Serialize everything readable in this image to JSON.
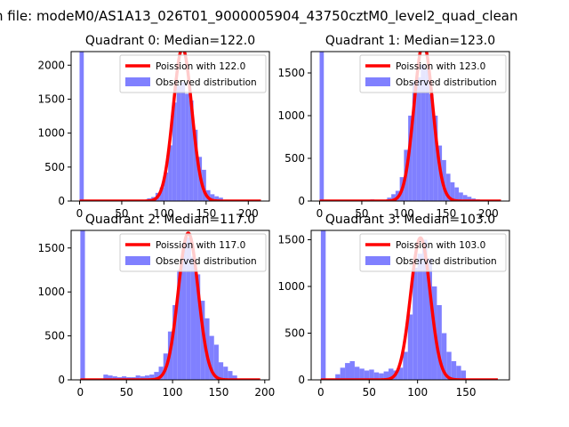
{
  "figure": {
    "suptitle": "n file: modeM0/AS1A13_026T01_9000005904_43750cztM0_level2_quad_clean"
  },
  "colors": {
    "poisson": "#ff0000",
    "observed": "#8080ff",
    "axes": "#000000"
  },
  "chart_data": [
    {
      "type": "bar",
      "title": "Quadrant 0: Median=122.0",
      "median": 122.0,
      "xlim": [
        -10,
        225
      ],
      "ylim": [
        0,
        2200
      ],
      "xticks": [
        0,
        50,
        100,
        150,
        200
      ],
      "yticks": [
        0,
        500,
        1000,
        1500,
        2000
      ],
      "grid": false,
      "legend_position": "top-right",
      "series": [
        {
          "name": "Poission with 122.0",
          "type": "line",
          "mean": 122.0,
          "scale": 2250,
          "x_range": [
            0,
            215
          ]
        },
        {
          "name": "Observed distribution",
          "type": "histogram",
          "bin_width": 5,
          "bins": [
            0,
            75,
            80,
            85,
            90,
            95,
            100,
            105,
            110,
            115,
            120,
            125,
            130,
            135,
            140,
            145,
            150,
            155,
            160,
            165,
            170
          ],
          "counts": [
            2200,
            20,
            40,
            60,
            120,
            200,
            420,
            820,
            1450,
            1700,
            1750,
            1580,
            1480,
            1050,
            650,
            460,
            160,
            100,
            70,
            50,
            20
          ]
        }
      ]
    },
    {
      "type": "bar",
      "title": "Quadrant 1: Median=123.0",
      "median": 123.0,
      "xlim": [
        -10,
        225
      ],
      "ylim": [
        0,
        1750
      ],
      "xticks": [
        0,
        50,
        100,
        150,
        200
      ],
      "yticks": [
        0,
        500,
        1000,
        1500
      ],
      "grid": false,
      "legend_position": "top-right",
      "series": [
        {
          "name": "Poission with 123.0",
          "type": "line",
          "mean": 123.0,
          "scale": 1850,
          "x_range": [
            0,
            215
          ]
        },
        {
          "name": "Observed distribution",
          "type": "histogram",
          "bin_width": 5,
          "bins": [
            0,
            60,
            80,
            85,
            90,
            95,
            100,
            105,
            110,
            115,
            120,
            125,
            130,
            135,
            140,
            145,
            150,
            155,
            160,
            165,
            170,
            175,
            180,
            185
          ],
          "counts": [
            1750,
            20,
            40,
            80,
            120,
            280,
            600,
            1000,
            1400,
            1450,
            1600,
            1550,
            1250,
            1000,
            650,
            480,
            320,
            220,
            160,
            100,
            70,
            50,
            30,
            20
          ]
        }
      ]
    },
    {
      "type": "bar",
      "title": "Quadrant 2: Median=117.0",
      "median": 117.0,
      "xlim": [
        -10,
        205
      ],
      "ylim": [
        0,
        1700
      ],
      "xticks": [
        0,
        50,
        100,
        150,
        200
      ],
      "yticks": [
        0,
        500,
        1000,
        1500
      ],
      "grid": false,
      "legend_position": "top-right",
      "series": [
        {
          "name": "Poission with 117.0",
          "type": "line",
          "mean": 117.0,
          "scale": 1670,
          "x_range": [
            0,
            195
          ]
        },
        {
          "name": "Observed distribution",
          "type": "histogram",
          "bin_width": 5,
          "bins": [
            0,
            20,
            25,
            30,
            35,
            40,
            45,
            50,
            55,
            60,
            65,
            70,
            75,
            80,
            85,
            90,
            95,
            100,
            105,
            110,
            115,
            120,
            125,
            130,
            135,
            140,
            145,
            150,
            155,
            160,
            165
          ],
          "counts": [
            1700,
            10,
            60,
            50,
            40,
            30,
            40,
            30,
            30,
            50,
            40,
            50,
            60,
            90,
            150,
            300,
            550,
            850,
            1250,
            1550,
            1620,
            1400,
            1200,
            900,
            700,
            500,
            400,
            200,
            150,
            100,
            50
          ]
        }
      ]
    },
    {
      "type": "bar",
      "title": "Quadrant 3: Median=103.0",
      "median": 103.0,
      "xlim": [
        -10,
        195
      ],
      "ylim": [
        0,
        1600
      ],
      "xticks": [
        0,
        50,
        100,
        150
      ],
      "yticks": [
        0,
        500,
        1000,
        1500
      ],
      "grid": false,
      "legend_position": "top-right",
      "series": [
        {
          "name": "Poission with 103.0",
          "type": "line",
          "mean": 103.0,
          "scale": 1520,
          "x_range": [
            0,
            183
          ]
        },
        {
          "name": "Observed distribution",
          "type": "histogram",
          "bin_width": 5,
          "bins": [
            0,
            15,
            20,
            25,
            30,
            35,
            40,
            45,
            50,
            55,
            60,
            65,
            70,
            75,
            80,
            85,
            90,
            95,
            100,
            105,
            110,
            115,
            120,
            125,
            130,
            135,
            140,
            145
          ],
          "counts": [
            1600,
            60,
            130,
            180,
            200,
            140,
            120,
            100,
            110,
            80,
            70,
            90,
            120,
            100,
            130,
            300,
            700,
            1200,
            1350,
            1500,
            1300,
            1000,
            800,
            500,
            300,
            200,
            150,
            100
          ]
        }
      ]
    }
  ]
}
